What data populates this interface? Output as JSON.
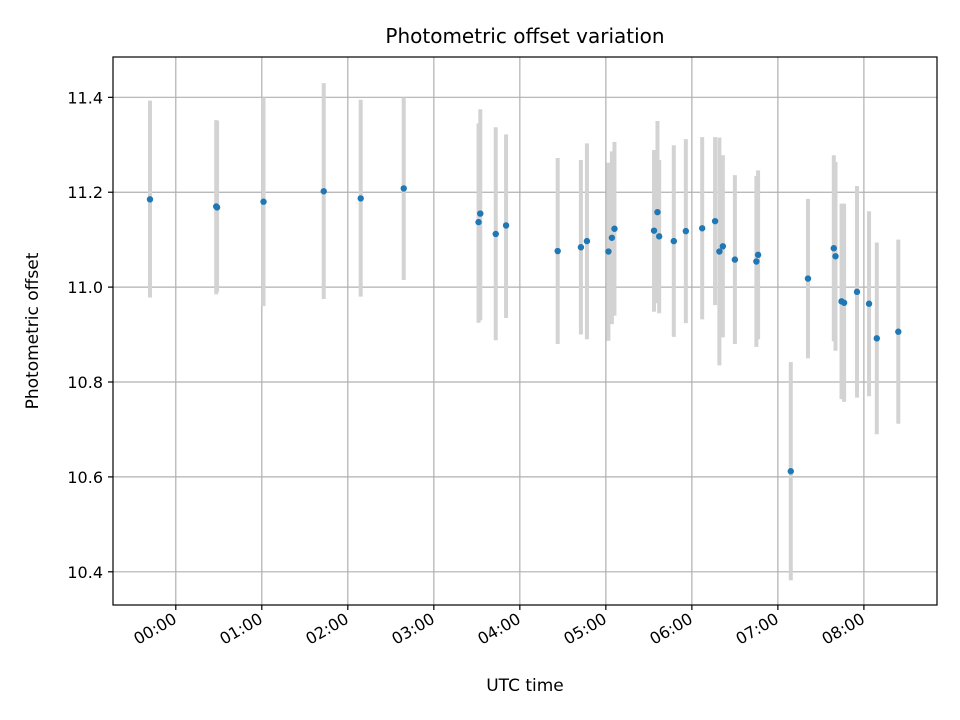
{
  "chart_data": {
    "type": "scatter",
    "title": "Photometric offset variation",
    "xlabel": "UTC time",
    "ylabel": "Photometric offset",
    "x_unit": "hours UTC",
    "xlim": [
      -0.73,
      8.85
    ],
    "ylim": [
      10.33,
      11.485
    ],
    "x_ticks": [
      0,
      1,
      2,
      3,
      4,
      5,
      6,
      7,
      8
    ],
    "x_tick_labels": [
      "00:00",
      "01:00",
      "02:00",
      "03:00",
      "04:00",
      "05:00",
      "06:00",
      "07:00",
      "08:00"
    ],
    "y_ticks": [
      10.4,
      10.6,
      10.8,
      11.0,
      11.2,
      11.4
    ],
    "y_tick_labels": [
      "10.4",
      "10.6",
      "10.8",
      "11.0",
      "11.2",
      "11.4"
    ],
    "grid": true,
    "marker_color": "#1f77b4",
    "errorbar_color": "#d3d3d3",
    "points": [
      {
        "x": -0.3,
        "y": 11.185,
        "low": 10.978,
        "high": 11.393
      },
      {
        "x": 0.47,
        "y": 11.17,
        "low": 10.985,
        "high": 11.352
      },
      {
        "x": 0.48,
        "y": 11.168,
        "low": 10.99,
        "high": 11.35
      },
      {
        "x": 1.02,
        "y": 11.18,
        "low": 10.96,
        "high": 11.4
      },
      {
        "x": 1.72,
        "y": 11.202,
        "low": 10.975,
        "high": 11.43
      },
      {
        "x": 2.15,
        "y": 11.187,
        "low": 10.98,
        "high": 11.395
      },
      {
        "x": 2.65,
        "y": 11.208,
        "low": 11.015,
        "high": 11.4
      },
      {
        "x": 3.52,
        "y": 11.137,
        "low": 10.925,
        "high": 11.345
      },
      {
        "x": 3.54,
        "y": 11.155,
        "low": 10.93,
        "high": 11.375
      },
      {
        "x": 3.72,
        "y": 11.112,
        "low": 10.888,
        "high": 11.337
      },
      {
        "x": 3.84,
        "y": 11.13,
        "low": 10.935,
        "high": 11.322
      },
      {
        "x": 4.44,
        "y": 11.076,
        "low": 10.88,
        "high": 11.272
      },
      {
        "x": 4.71,
        "y": 11.084,
        "low": 10.9,
        "high": 11.268
      },
      {
        "x": 4.78,
        "y": 11.097,
        "low": 10.89,
        "high": 11.303
      },
      {
        "x": 5.03,
        "y": 11.075,
        "low": 10.887,
        "high": 11.262
      },
      {
        "x": 5.07,
        "y": 11.104,
        "low": 10.922,
        "high": 11.286
      },
      {
        "x": 5.1,
        "y": 11.123,
        "low": 10.94,
        "high": 11.306
      },
      {
        "x": 5.56,
        "y": 11.119,
        "low": 10.948,
        "high": 11.289
      },
      {
        "x": 5.6,
        "y": 11.158,
        "low": 10.966,
        "high": 11.35
      },
      {
        "x": 5.62,
        "y": 11.107,
        "low": 10.945,
        "high": 11.268
      },
      {
        "x": 5.79,
        "y": 11.097,
        "low": 10.895,
        "high": 11.299
      },
      {
        "x": 5.93,
        "y": 11.118,
        "low": 10.924,
        "high": 11.312
      },
      {
        "x": 6.12,
        "y": 11.124,
        "low": 10.932,
        "high": 11.316
      },
      {
        "x": 6.27,
        "y": 11.139,
        "low": 10.962,
        "high": 11.316
      },
      {
        "x": 6.32,
        "y": 11.075,
        "low": 10.835,
        "high": 11.315
      },
      {
        "x": 6.36,
        "y": 11.086,
        "low": 10.894,
        "high": 11.278
      },
      {
        "x": 6.5,
        "y": 11.058,
        "low": 10.88,
        "high": 11.236
      },
      {
        "x": 6.75,
        "y": 11.054,
        "low": 10.874,
        "high": 11.234
      },
      {
        "x": 6.77,
        "y": 11.068,
        "low": 10.89,
        "high": 11.246
      },
      {
        "x": 7.15,
        "y": 10.612,
        "low": 10.382,
        "high": 10.842
      },
      {
        "x": 7.35,
        "y": 11.018,
        "low": 10.85,
        "high": 11.186
      },
      {
        "x": 7.65,
        "y": 11.082,
        "low": 10.886,
        "high": 11.278
      },
      {
        "x": 7.67,
        "y": 11.065,
        "low": 10.866,
        "high": 11.264
      },
      {
        "x": 7.74,
        "y": 10.97,
        "low": 10.764,
        "high": 11.176
      },
      {
        "x": 7.77,
        "y": 10.967,
        "low": 10.758,
        "high": 11.176
      },
      {
        "x": 7.92,
        "y": 10.99,
        "low": 10.767,
        "high": 11.213
      },
      {
        "x": 8.06,
        "y": 10.965,
        "low": 10.77,
        "high": 11.16
      },
      {
        "x": 8.15,
        "y": 10.892,
        "low": 10.69,
        "high": 11.094
      },
      {
        "x": 8.4,
        "y": 10.906,
        "low": 10.712,
        "high": 11.1
      }
    ]
  }
}
